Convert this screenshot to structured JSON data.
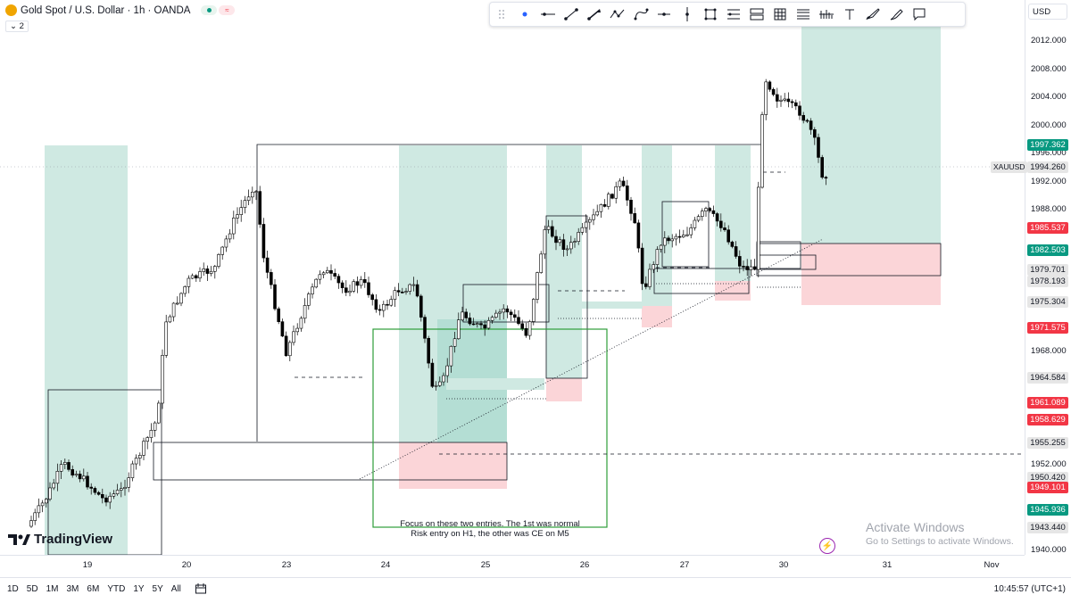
{
  "header": {
    "symbol_title": "Gold Spot / U.S. Dollar · 1h · OANDA",
    "collapse_count": "2"
  },
  "currency_selector": "USD",
  "toolbar": {
    "tools": [
      "drag-handle",
      "dot-icon",
      "horizontal-line-icon",
      "trend-line-icon",
      "path-icon",
      "polyline-icon",
      "curve-icon",
      "horizontal-ray-icon",
      "vertical-line-icon",
      "rectangle-icon",
      "parallel-channel-icon",
      "position-icon",
      "table-icon",
      "fib-icon",
      "volume-icon",
      "text-icon",
      "brush-icon",
      "highlighter-icon",
      "comment-icon"
    ]
  },
  "price_axis": {
    "ticks": [
      "2012.000",
      "2008.000",
      "2004.000",
      "2000.000",
      "1996.000",
      "1992.000",
      "1988.000",
      "1968.000",
      "1952.000",
      "1940.000"
    ],
    "labels": [
      {
        "text": "1997.362",
        "color": "#089981"
      },
      {
        "text": "1994.260",
        "color": "#e6e6e6",
        "dark": true
      },
      {
        "text": "1985.537",
        "color": "#f23645"
      },
      {
        "text": "1982.503",
        "color": "#089981"
      },
      {
        "text": "1979.701",
        "color": "#e6e6e6",
        "dark": true
      },
      {
        "text": "1978.193",
        "color": "#e6e6e6",
        "dark": true
      },
      {
        "text": "1975.304",
        "color": "#e6e6e6",
        "dark": true
      },
      {
        "text": "1971.575",
        "color": "#f23645"
      },
      {
        "text": "1964.584",
        "color": "#e6e6e6",
        "dark": true
      },
      {
        "text": "1961.089",
        "color": "#f23645"
      },
      {
        "text": "1958.629",
        "color": "#f23645"
      },
      {
        "text": "1955.255",
        "color": "#e6e6e6",
        "dark": true
      },
      {
        "text": "1950.420",
        "color": "#e6e6e6",
        "dark": true
      },
      {
        "text": "1949.101",
        "color": "#f23645"
      },
      {
        "text": "1945.936",
        "color": "#089981"
      },
      {
        "text": "1943.440",
        "color": "#e6e6e6",
        "dark": true
      }
    ],
    "symbol_tag": "XAUUSD"
  },
  "time_axis": {
    "labels": [
      "19",
      "20",
      "23",
      "24",
      "25",
      "26",
      "27",
      "30",
      "31",
      "Nov"
    ]
  },
  "annotation": {
    "line1": "Focus on these two entries. The 1st was normal",
    "line2": "Risk entry on H1, the other was CE on M5"
  },
  "brand": "TradingView",
  "watermark": {
    "title": "Activate Windows",
    "subtitle": "Go to Settings to activate Windows."
  },
  "bottom_bar": {
    "ranges": [
      "1D",
      "5D",
      "1M",
      "3M",
      "6M",
      "YTD",
      "1Y",
      "5Y",
      "All"
    ],
    "clock": "10:45:57 (UTC+1)"
  },
  "colors": {
    "bull": "#ffffff",
    "bear": "#000000",
    "tp_zone": "#cfe9e2",
    "sl_zone": "#fbd5d8",
    "green_box": "#2e9e3a"
  }
}
